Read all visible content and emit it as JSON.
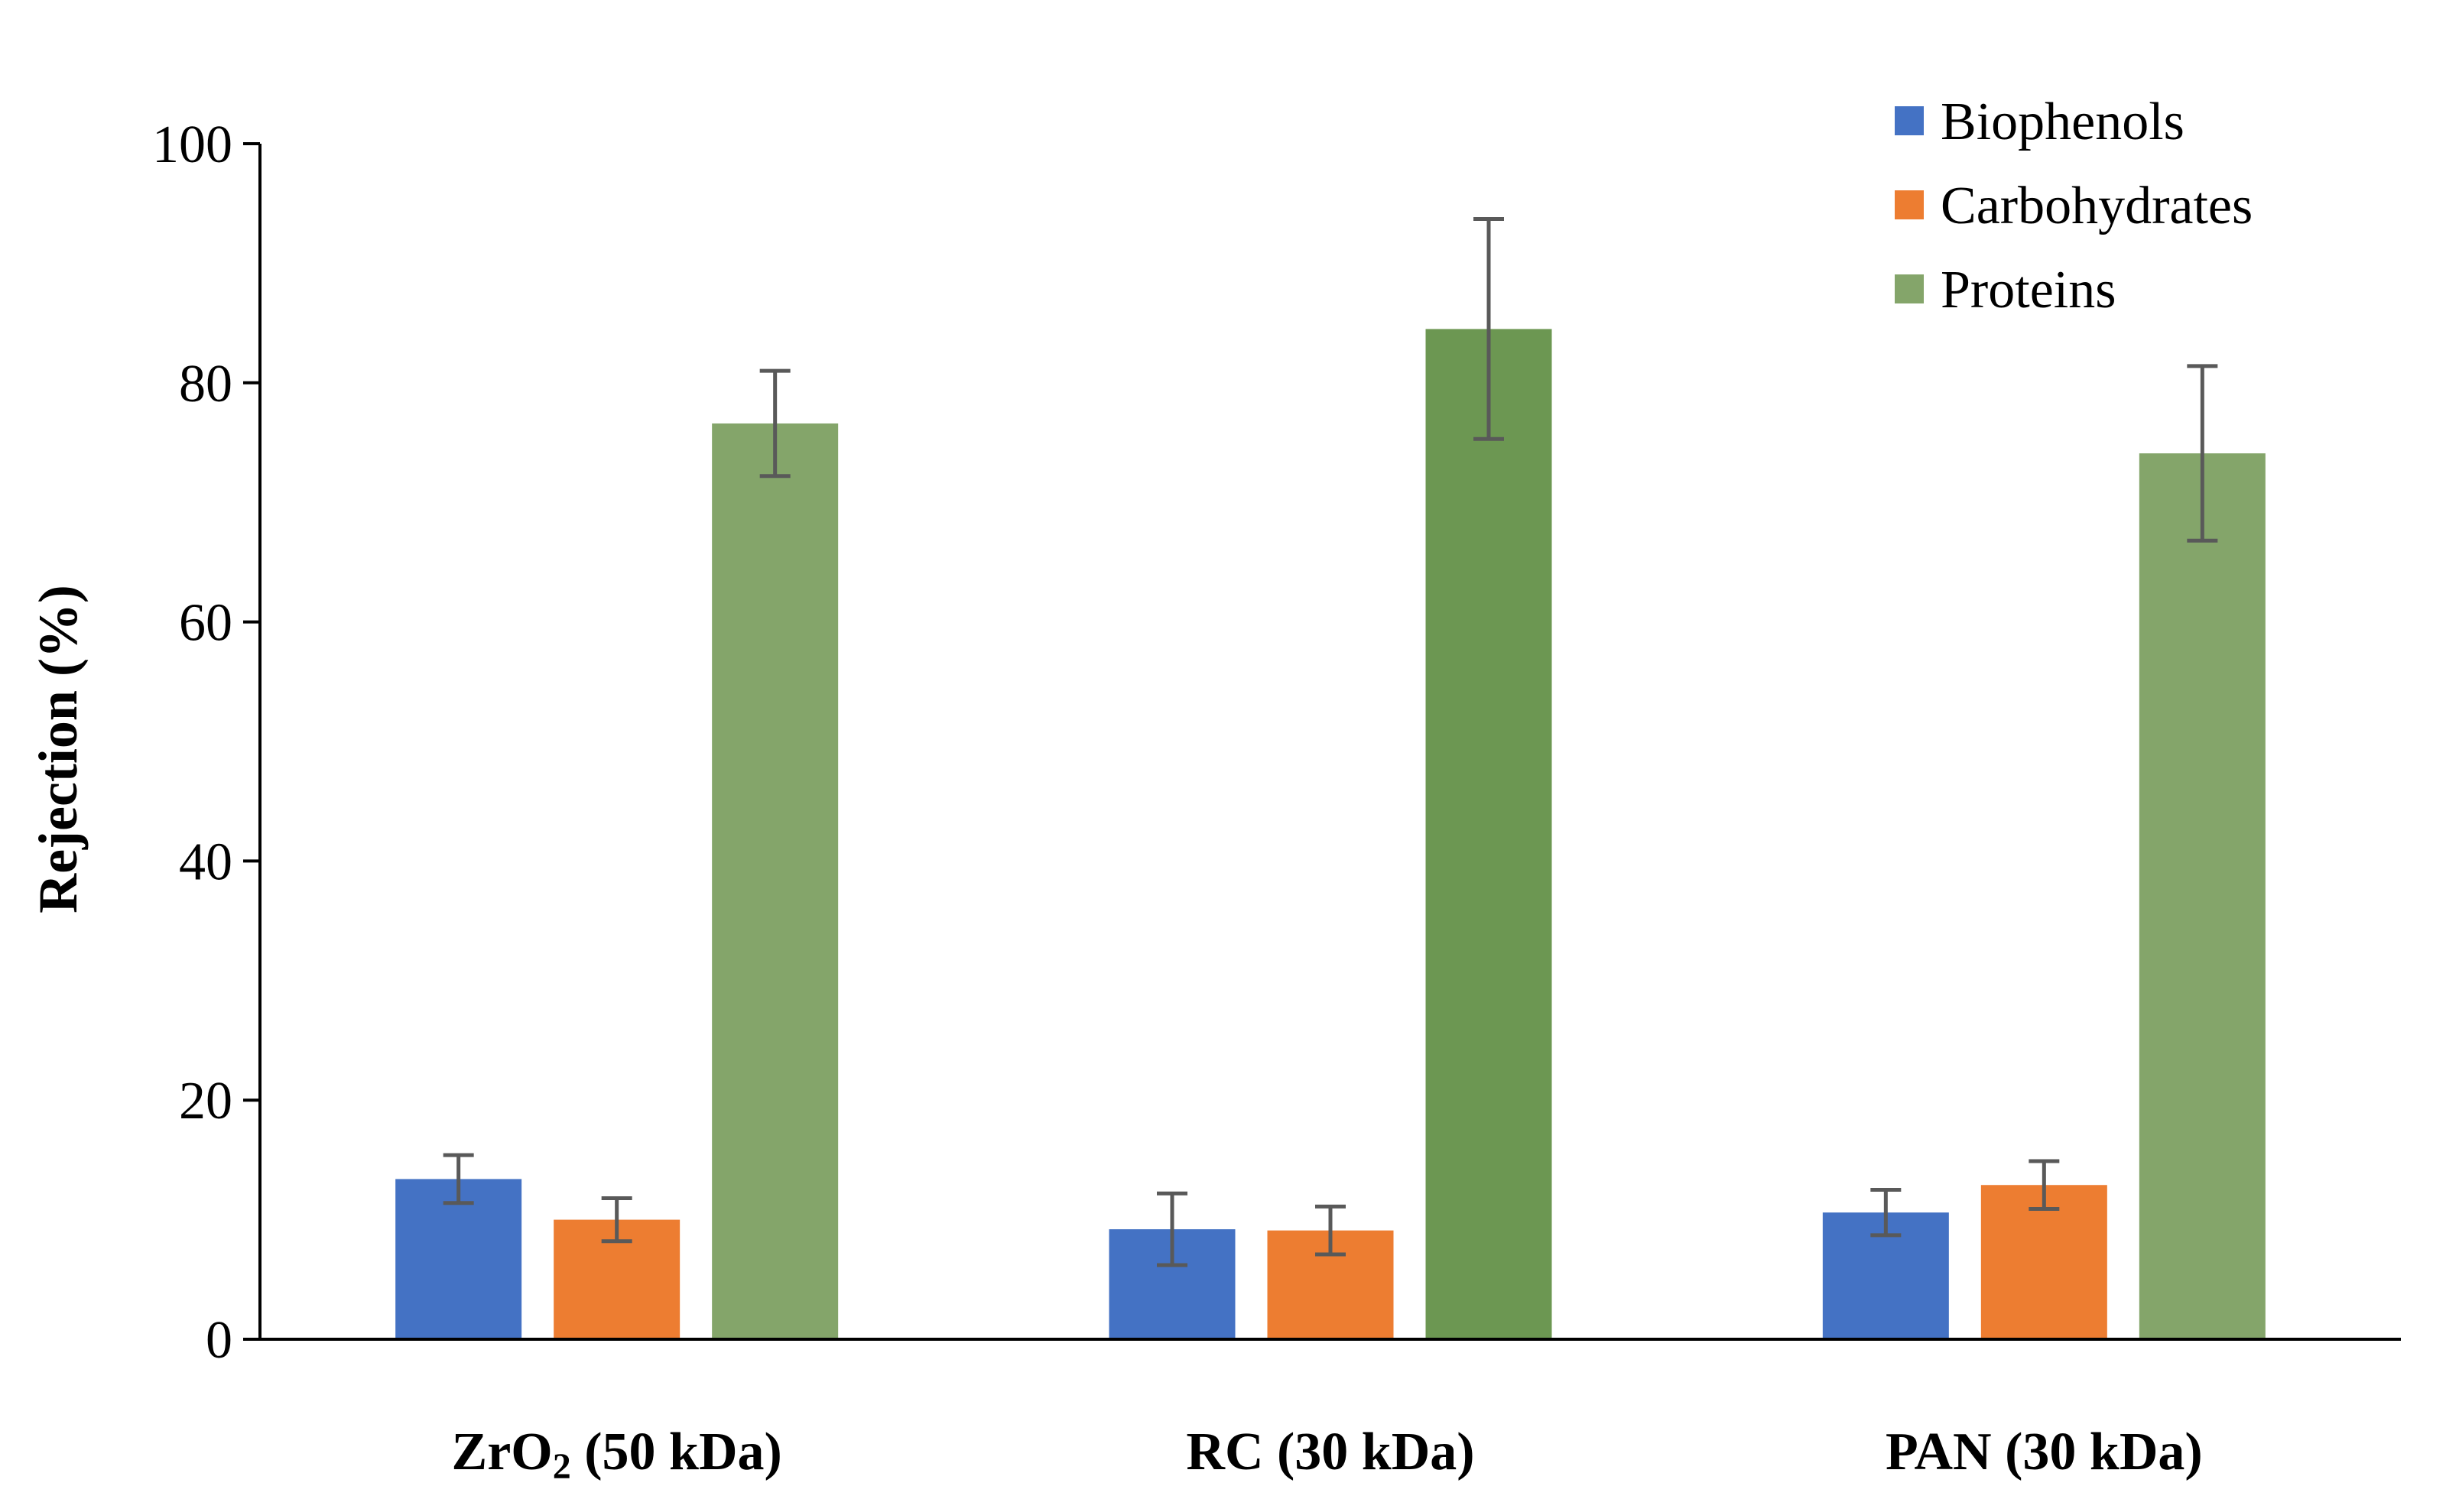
{
  "chart_data": {
    "type": "bar",
    "categories": [
      {
        "label": "ZrO₂ (50 kDa)",
        "parts": [
          {
            "text": "ZrO"
          },
          {
            "text": "2",
            "sub": true
          },
          {
            "text": " (50 kDa)"
          }
        ]
      },
      {
        "label": "RC (30 kDa)",
        "parts": [
          {
            "text": "RC (30 kDa)"
          }
        ]
      },
      {
        "label": "PAN (30 kDa)",
        "parts": [
          {
            "text": "PAN (30 kDa)"
          }
        ]
      }
    ],
    "series": [
      {
        "name": "Biophenols",
        "color": "#4472C4",
        "values": [
          13.4,
          9.2,
          10.6
        ],
        "errors": [
          2.0,
          3.0,
          1.9
        ]
      },
      {
        "name": "Carbohydrates",
        "color": "#ED7D31",
        "values": [
          10.0,
          9.1,
          12.9
        ],
        "errors": [
          1.8,
          2.0,
          2.0
        ]
      },
      {
        "name": "Proteins",
        "color": "#84A56A",
        "values": [
          76.6,
          84.5,
          74.1
        ],
        "errors": [
          4.4,
          9.2,
          7.3
        ],
        "highlight": {
          "index": 1,
          "color": "#6C9752"
        }
      }
    ],
    "ylabel": "Rejection (%)",
    "xlabel": "",
    "ylim": [
      0,
      100
    ],
    "yticks": [
      0,
      20,
      40,
      60,
      80,
      100
    ],
    "grid": false,
    "legend": "top-right"
  }
}
